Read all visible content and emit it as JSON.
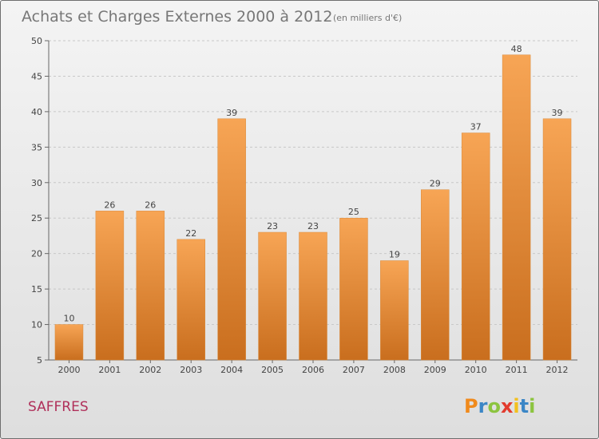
{
  "chart_data": {
    "type": "bar",
    "title": "Achats et Charges Externes 2000 à 2012",
    "subtitle": "(en milliers d'€)",
    "categories": [
      "2000",
      "2001",
      "2002",
      "2003",
      "2004",
      "2005",
      "2006",
      "2007",
      "2008",
      "2009",
      "2010",
      "2011",
      "2012"
    ],
    "values": [
      10,
      26,
      26,
      22,
      39,
      23,
      23,
      25,
      19,
      29,
      37,
      48,
      39
    ],
    "ylim": [
      5,
      50
    ],
    "yticks": [
      5,
      10,
      15,
      20,
      25,
      30,
      35,
      40,
      45,
      50
    ],
    "grid": true,
    "bar_color_top": "#f7a555",
    "bar_color_bottom": "#c96e1e"
  },
  "commune": "SAFFRES",
  "logo": {
    "letters": [
      "P",
      "r",
      "o",
      "x",
      "i",
      "t",
      "i"
    ],
    "colors": [
      "#f08a1c",
      "#3b86c6",
      "#8cc43f",
      "#e23b2e",
      "#f2c01e",
      "#3b86c6",
      "#8cc43f"
    ]
  }
}
